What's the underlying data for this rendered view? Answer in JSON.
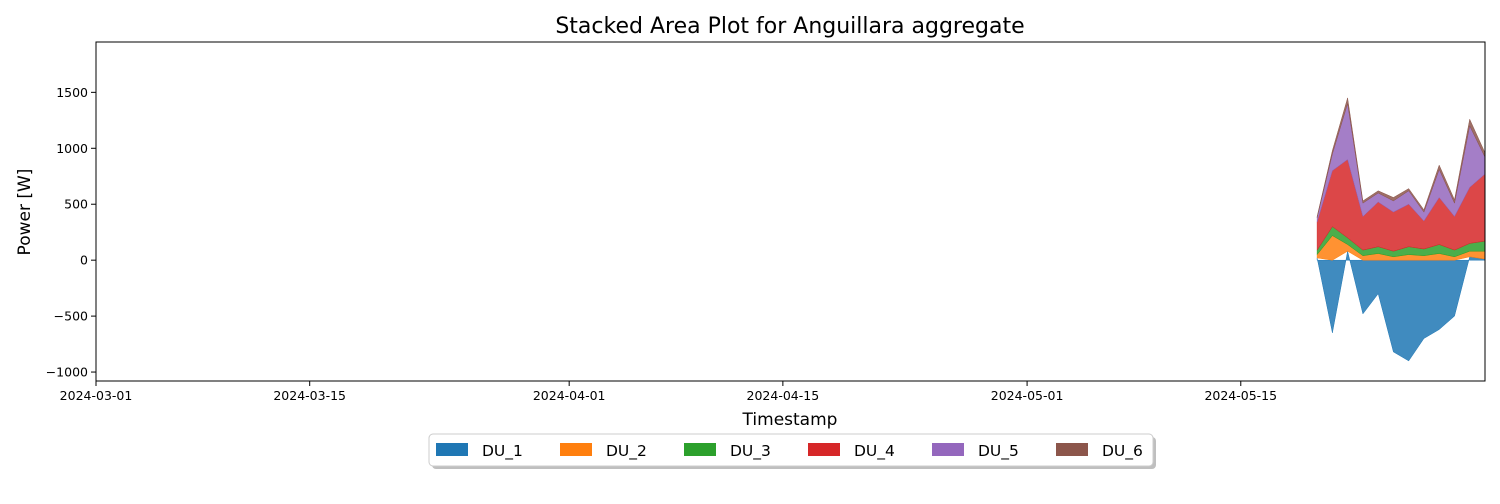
{
  "chart_data": {
    "type": "area",
    "title": "Stacked Area Plot for Anguillara aggregate",
    "xlabel": "Timestamp",
    "ylabel": "Power [W]",
    "x_axis": {
      "type": "date",
      "range": [
        "2024-03-01",
        "2024-05-31"
      ],
      "ticks": [
        "2024-03-01",
        "2024-03-15",
        "2024-04-01",
        "2024-04-15",
        "2024-05-01",
        "2024-05-15"
      ]
    },
    "y_axis": {
      "range": [
        -1080,
        1950
      ],
      "ticks": [
        -1000,
        -500,
        0,
        500,
        1000,
        1500
      ]
    },
    "grid": false,
    "stacked": true,
    "legend": {
      "placement": "bottom-center",
      "columns": 6
    },
    "series": [
      {
        "name": "DU_1",
        "color": "#1f77b4",
        "x": [
          "2024-05-20",
          "2024-05-21",
          "2024-05-22",
          "2024-05-23",
          "2024-05-24",
          "2024-05-25",
          "2024-05-26",
          "2024-05-27",
          "2024-05-28",
          "2024-05-29",
          "2024-05-30",
          "2024-05-31"
        ],
        "y": [
          20,
          -650,
          80,
          -480,
          -300,
          -820,
          -900,
          -700,
          -620,
          -500,
          30,
          10
        ]
      },
      {
        "name": "DU_2",
        "color": "#ff7f0e",
        "x": [
          "2024-05-20",
          "2024-05-21",
          "2024-05-22",
          "2024-05-23",
          "2024-05-24",
          "2024-05-25",
          "2024-05-26",
          "2024-05-27",
          "2024-05-28",
          "2024-05-29",
          "2024-05-30",
          "2024-05-31"
        ],
        "y": [
          30,
          220,
          60,
          40,
          60,
          30,
          50,
          40,
          60,
          30,
          50,
          70
        ]
      },
      {
        "name": "DU_3",
        "color": "#2ca02c",
        "x": [
          "2024-05-20",
          "2024-05-21",
          "2024-05-22",
          "2024-05-23",
          "2024-05-24",
          "2024-05-25",
          "2024-05-26",
          "2024-05-27",
          "2024-05-28",
          "2024-05-29",
          "2024-05-30",
          "2024-05-31"
        ],
        "y": [
          40,
          80,
          60,
          50,
          60,
          50,
          70,
          60,
          80,
          60,
          70,
          90
        ]
      },
      {
        "name": "DU_4",
        "color": "#d62728",
        "x": [
          "2024-05-20",
          "2024-05-21",
          "2024-05-22",
          "2024-05-23",
          "2024-05-24",
          "2024-05-25",
          "2024-05-26",
          "2024-05-27",
          "2024-05-28",
          "2024-05-29",
          "2024-05-30",
          "2024-05-31"
        ],
        "y": [
          250,
          500,
          700,
          300,
          400,
          350,
          380,
          250,
          420,
          300,
          500,
          600
        ]
      },
      {
        "name": "DU_5",
        "color": "#9467bd",
        "x": [
          "2024-05-20",
          "2024-05-21",
          "2024-05-22",
          "2024-05-23",
          "2024-05-24",
          "2024-05-25",
          "2024-05-26",
          "2024-05-27",
          "2024-05-28",
          "2024-05-29",
          "2024-05-30",
          "2024-05-31"
        ],
        "y": [
          40,
          150,
          500,
          120,
          80,
          100,
          120,
          80,
          250,
          120,
          550,
          150
        ]
      },
      {
        "name": "DU_6",
        "color": "#8c564b",
        "x": [
          "2024-05-20",
          "2024-05-21",
          "2024-05-22",
          "2024-05-23",
          "2024-05-24",
          "2024-05-25",
          "2024-05-26",
          "2024-05-27",
          "2024-05-28",
          "2024-05-29",
          "2024-05-30",
          "2024-05-31"
        ],
        "y": [
          10,
          30,
          50,
          20,
          20,
          30,
          20,
          20,
          40,
          30,
          60,
          40
        ]
      }
    ]
  }
}
